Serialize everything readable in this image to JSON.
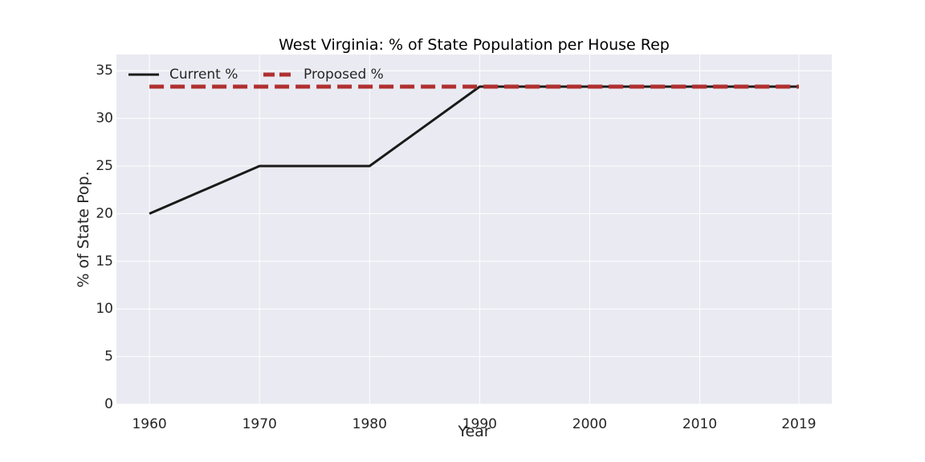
{
  "chart_data": {
    "type": "line",
    "title": "West Virginia: % of State Population per House Rep",
    "xlabel": "Year",
    "ylabel": "% of State Pop.",
    "xlim": [
      1957,
      2022
    ],
    "ylim": [
      0,
      36.7
    ],
    "x_ticks": [
      1960,
      1970,
      1980,
      1990,
      2000,
      2010,
      2019
    ],
    "y_ticks": [
      0,
      5,
      10,
      15,
      20,
      25,
      30,
      35
    ],
    "grid": true,
    "legend_position": "top-left",
    "background_color": "#eaeaf2",
    "series": [
      {
        "name": "Current %",
        "color": "#1a1a1a",
        "line_style": "solid",
        "x": [
          1960,
          1970,
          1980,
          1990,
          2000,
          2010,
          2019
        ],
        "values": [
          20,
          25,
          25,
          33.33,
          33.33,
          33.33,
          33.33
        ]
      },
      {
        "name": "Proposed %",
        "color": "#b03030",
        "line_style": "dashed",
        "x": [
          1960,
          1970,
          1980,
          1990,
          2000,
          2010,
          2019
        ],
        "values": [
          33.33,
          33.33,
          33.33,
          33.33,
          33.33,
          33.33,
          33.33
        ]
      }
    ]
  }
}
